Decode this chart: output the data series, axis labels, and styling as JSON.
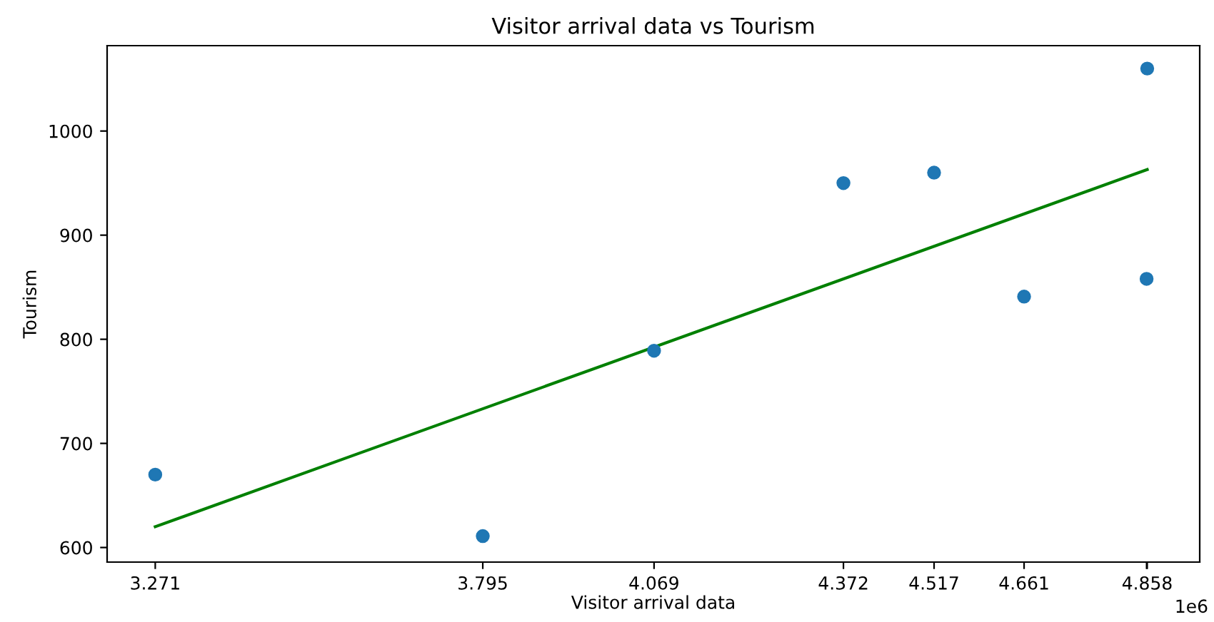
{
  "chart_data": {
    "type": "scatter",
    "title": "Visitor arrival data vs Tourism",
    "xlabel": "Visitor arrival data",
    "ylabel": "Tourism",
    "series": [
      {
        "color": "#1f77b4",
        "marker": "circle",
        "x": [
          3.271,
          3.795,
          4.069,
          4.372,
          4.517,
          4.661,
          4.857,
          4.858
        ],
        "values": [
          670,
          611,
          789,
          950,
          960,
          841,
          858,
          1060
        ]
      },
      {
        "type": "line",
        "color": "#008000",
        "marker": "none",
        "x": [
          3.271,
          4.858
        ],
        "values": [
          620,
          963
        ]
      }
    ],
    "xlim": [
      3.194,
      4.942
    ],
    "ylim": [
      586,
      1082
    ],
    "xticks": [
      3.271,
      3.795,
      4.069,
      4.372,
      4.517,
      4.661,
      {
        "value": 4.857,
        "label": null
      },
      4.858
    ],
    "yticks": [
      600,
      700,
      800,
      900,
      1000
    ],
    "annotations": [
      "1e6"
    ],
    "grid": false,
    "legend": false
  }
}
